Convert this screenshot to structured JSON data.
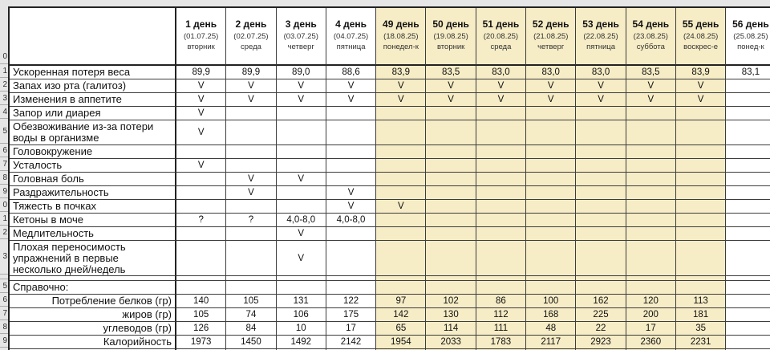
{
  "sheet": {
    "colors": {
      "highlight": "#f6ecc6",
      "grid_line": "#3d3d3d",
      "grid_line_strong": "#222222",
      "gutter_bg": "#e6e6e6"
    },
    "header_row_number": "0",
    "columns": [
      {
        "day": "1 день",
        "date": "(01.07.25)",
        "weekday": "вторник",
        "highlight": false
      },
      {
        "day": "2 день",
        "date": "(02.07.25)",
        "weekday": "среда",
        "highlight": false
      },
      {
        "day": "3 день",
        "date": "(03.07.25)",
        "weekday": "четверг",
        "highlight": false
      },
      {
        "day": "4 день",
        "date": "(04.07.25)",
        "weekday": "пятница",
        "highlight": false
      },
      {
        "day": "49 день",
        "date": "(18.08.25)",
        "weekday": "понедел-к",
        "highlight": true
      },
      {
        "day": "50 день",
        "date": "(19.08.25)",
        "weekday": "вторник",
        "highlight": true
      },
      {
        "day": "51 день",
        "date": "(20.08.25)",
        "weekday": "среда",
        "highlight": true
      },
      {
        "day": "52 день",
        "date": "(21.08.25)",
        "weekday": "четверг",
        "highlight": true
      },
      {
        "day": "53 день",
        "date": "(22.08.25)",
        "weekday": "пятница",
        "highlight": true
      },
      {
        "day": "54 день",
        "date": "(23.08.25)",
        "weekday": "суббота",
        "highlight": true
      },
      {
        "day": "55 день",
        "date": "(24.08.25)",
        "weekday": "воскрес-е",
        "highlight": true
      },
      {
        "day": "56 день",
        "date": "(25.08.25)",
        "weekday": "понед-к",
        "highlight": false
      }
    ],
    "rows": [
      {
        "num": "1",
        "label": "Ускоренная потеря веса",
        "cells": [
          "89,9",
          "89,9",
          "89,0",
          "88,6",
          "83,9",
          "83,5",
          "83,0",
          "83,0",
          "83,0",
          "83,5",
          "83,9",
          "83,1"
        ]
      },
      {
        "num": "2",
        "label": "Запах изо рта (галитоз)",
        "cells": [
          "V",
          "V",
          "V",
          "V",
          "V",
          "V",
          "V",
          "V",
          "V",
          "V",
          "V",
          ""
        ]
      },
      {
        "num": "3",
        "label": "Изменения в аппетите",
        "cells": [
          "V",
          "V",
          "V",
          "V",
          "V",
          "V",
          "V",
          "V",
          "V",
          "V",
          "V",
          ""
        ]
      },
      {
        "num": "4",
        "label": "Запор или диарея",
        "cells": [
          "V",
          "",
          "",
          "",
          "",
          "",
          "",
          "",
          "",
          "",
          "",
          ""
        ]
      },
      {
        "num": "5",
        "label": "Обезвоживание из-за потери воды в организме",
        "cells": [
          "V",
          "",
          "",
          "",
          "",
          "",
          "",
          "",
          "",
          "",
          "",
          ""
        ]
      },
      {
        "num": "6",
        "label": "Головокружение",
        "cells": [
          "",
          "",
          "",
          "",
          "",
          "",
          "",
          "",
          "",
          "",
          "",
          ""
        ]
      },
      {
        "num": "7",
        "label": "Усталость",
        "cells": [
          "V",
          "",
          "",
          "",
          "",
          "",
          "",
          "",
          "",
          "",
          "",
          ""
        ]
      },
      {
        "num": "8",
        "label": "Головная боль",
        "cells": [
          "",
          "V",
          "V",
          "",
          "",
          "",
          "",
          "",
          "",
          "",
          "",
          ""
        ]
      },
      {
        "num": "9",
        "label": "Раздражительность",
        "cells": [
          "",
          "V",
          "",
          "V",
          "",
          "",
          "",
          "",
          "",
          "",
          "",
          ""
        ]
      },
      {
        "num": "0",
        "label": "Тяжесть в почках",
        "cells": [
          "",
          "",
          "",
          "V",
          "V",
          "",
          "",
          "",
          "",
          "",
          "",
          ""
        ]
      },
      {
        "num": "1",
        "label": "Кетоны в моче",
        "cells": [
          "?",
          "?",
          "4,0-8,0",
          "4,0-8,0",
          "",
          "",
          "",
          "",
          "",
          "",
          "",
          ""
        ]
      },
      {
        "num": "2",
        "label": "Медлительность",
        "cells": [
          "",
          "",
          "V",
          "",
          "",
          "",
          "",
          "",
          "",
          "",
          "",
          ""
        ]
      },
      {
        "num": "3",
        "label": "Плохая переносимость упражнений в первые несколько дней/недель",
        "cells": [
          "",
          "",
          "V",
          "",
          "",
          "",
          "",
          "",
          "",
          "",
          "",
          ""
        ]
      },
      {
        "num": "",
        "label": "",
        "cells": [
          "",
          "",
          "",
          "",
          "",
          "",
          "",
          "",
          "",
          "",
          "",
          ""
        ]
      },
      {
        "num": "5",
        "label": "Справочно:",
        "cells": [
          "",
          "",
          "",
          "",
          "",
          "",
          "",
          "",
          "",
          "",
          "",
          ""
        ]
      },
      {
        "num": "6",
        "label": "Потребление белков (гр)",
        "cells": [
          "140",
          "105",
          "131",
          "122",
          "97",
          "102",
          "86",
          "100",
          "162",
          "120",
          "113",
          ""
        ]
      },
      {
        "num": "7",
        "label": "жиров (гр)",
        "cells": [
          "105",
          "74",
          "106",
          "175",
          "142",
          "130",
          "112",
          "168",
          "225",
          "200",
          "181",
          ""
        ]
      },
      {
        "num": "8",
        "label": "углеводов (гр)",
        "cells": [
          "126",
          "84",
          "10",
          "17",
          "65",
          "114",
          "111",
          "48",
          "22",
          "17",
          "35",
          ""
        ]
      },
      {
        "num": "9",
        "label": "Калорийность",
        "cells": [
          "1973",
          "1450",
          "1492",
          "2142",
          "1954",
          "2033",
          "1783",
          "2117",
          "2923",
          "2360",
          "2231",
          ""
        ]
      }
    ]
  }
}
